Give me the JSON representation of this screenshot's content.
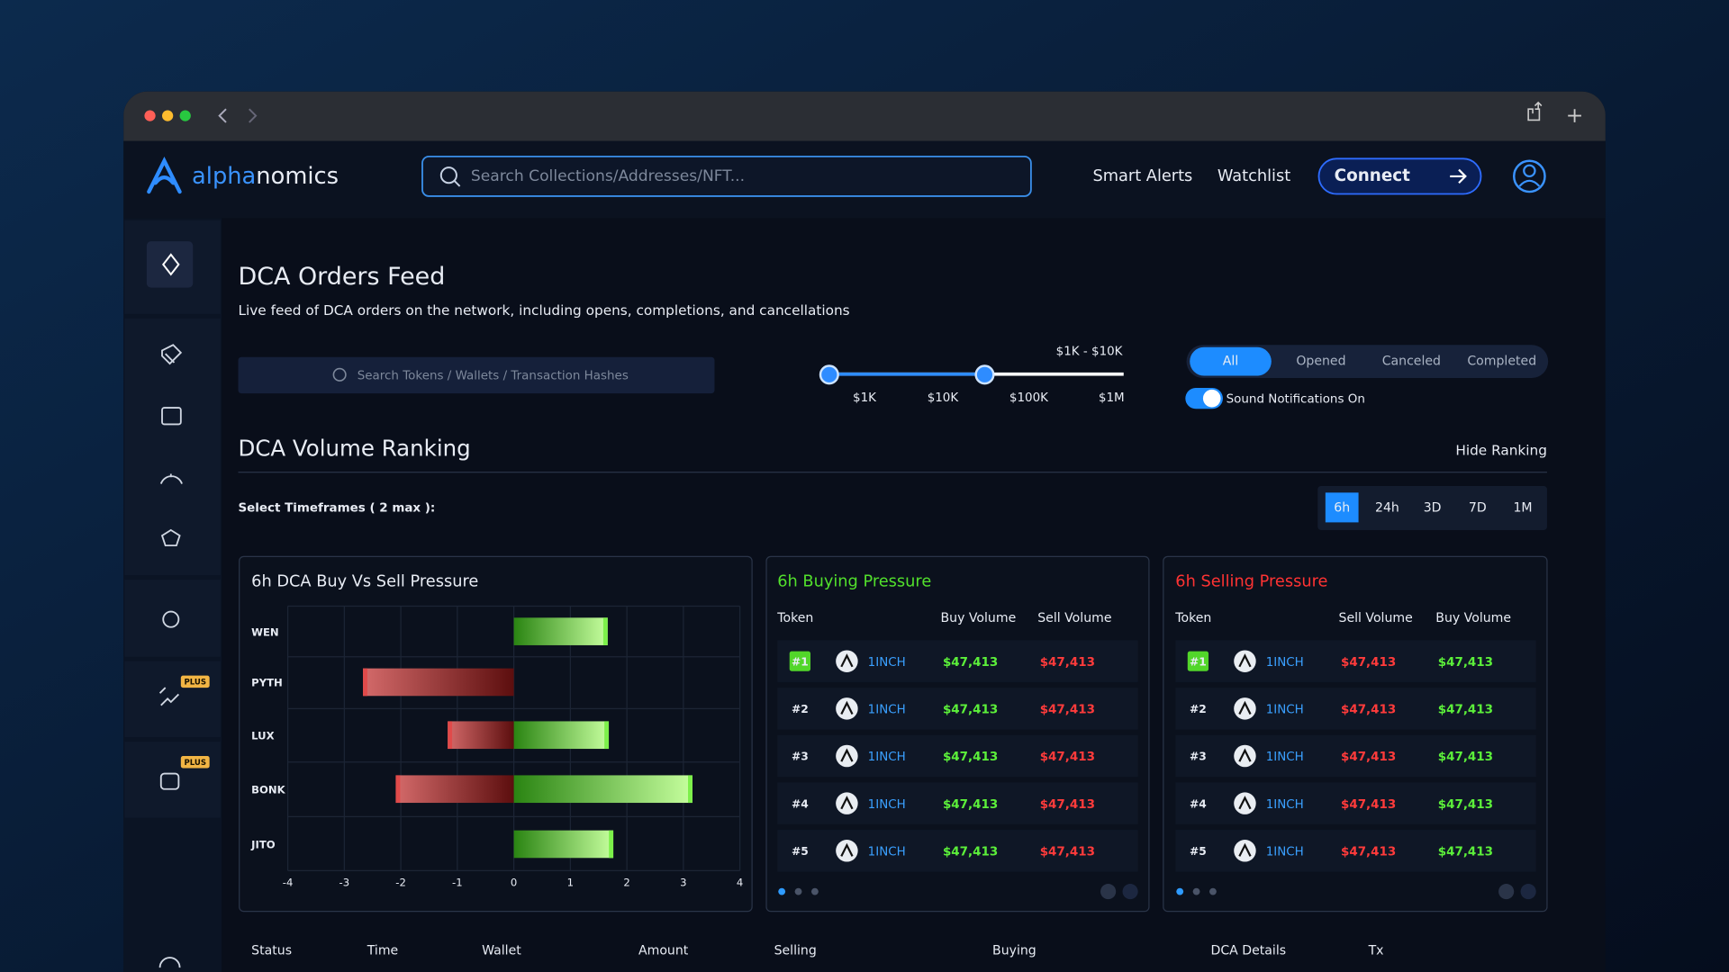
{
  "app": {
    "brand_a": "alpha",
    "brand_b": "nomics",
    "search_placeholder": "Search Collections/Addresses/NFT...",
    "nav": [
      "Smart Alerts",
      "Watchlist"
    ],
    "connect": "Connect"
  },
  "sidebar": {
    "badges": [
      "PLUS",
      "PLUS"
    ]
  },
  "feed": {
    "title": "DCA Orders Feed",
    "subtitle": "Live feed of DCA orders on the network, including opens, completions, and cancellations",
    "search_placeholder": "Search Tokens / Wallets / Transaction Hashes",
    "range_label": "$1K - $10K",
    "range_ticks": [
      "$1K",
      "$10K",
      "$100K",
      "$1M"
    ],
    "tabs": [
      "All",
      "Opened",
      "Canceled",
      "Completed"
    ],
    "sound": "Sound Notifications On"
  },
  "ranking": {
    "title": "DCA Volume Ranking",
    "hide": "Hide Ranking",
    "timeframe_label": "Select Timeframes ( 2 max ):",
    "timeframes": [
      "6h",
      "24h",
      "3D",
      "7D",
      "1M"
    ]
  },
  "buying": {
    "title": "6h Buying Pressure",
    "columns": [
      "Token",
      "Buy Volume",
      "Sell Volume"
    ],
    "rows": [
      [
        "#1",
        "1INCH",
        "$47,413",
        "$47,413"
      ],
      [
        "#2",
        "1INCH",
        "$47,413",
        "$47,413"
      ],
      [
        "#3",
        "1INCH",
        "$47,413",
        "$47,413"
      ],
      [
        "#4",
        "1INCH",
        "$47,413",
        "$47,413"
      ],
      [
        "#5",
        "1INCH",
        "$47,413",
        "$47,413"
      ]
    ]
  },
  "selling": {
    "title": "6h Selling Pressure",
    "columns": [
      "Token",
      "Sell Volume",
      "Buy Volume"
    ],
    "rows": [
      [
        "#1",
        "1INCH",
        "$47,413",
        "$47,413"
      ],
      [
        "#2",
        "1INCH",
        "$47,413",
        "$47,413"
      ],
      [
        "#3",
        "1INCH",
        "$47,413",
        "$47,413"
      ],
      [
        "#4",
        "1INCH",
        "$47,413",
        "$47,413"
      ],
      [
        "#5",
        "1INCH",
        "$47,413",
        "$47,413"
      ]
    ]
  },
  "orders": {
    "columns": [
      "Status",
      "Time",
      "Wallet",
      "Amount",
      "Selling",
      "Buying",
      "DCA Details",
      "Tx"
    ]
  },
  "chart_data": {
    "type": "bar",
    "orientation": "horizontal",
    "title": "6h DCA Buy Vs Sell Pressure",
    "categories": [
      "WEN",
      "PYTH",
      "LUX",
      "BONK",
      "JITO"
    ],
    "series": [
      {
        "color": "#e04a4a",
        "values": [
          0,
          -2.67,
          -1.17,
          -2.09,
          0
        ]
      },
      {
        "color": "#7cf04a",
        "values": [
          1.66,
          0,
          1.68,
          3.16,
          1.76
        ]
      }
    ],
    "xlim": [
      -4,
      4
    ],
    "xticks": [
      -4,
      -3,
      -2,
      -1,
      0,
      1,
      2,
      3,
      4
    ],
    "grid": true
  }
}
